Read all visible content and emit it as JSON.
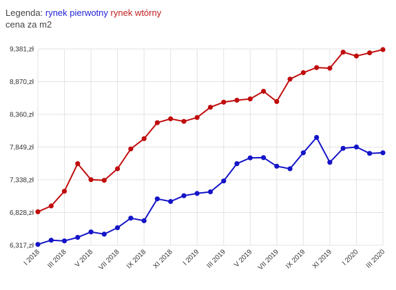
{
  "legend": {
    "prefix": "Legenda:",
    "subtitle": "cena za m2"
  },
  "chart_data": {
    "type": "line",
    "ylabel": "cena za m2",
    "ylim": [
      6317,
      9381
    ],
    "yticks": [
      6317,
      6828,
      7338,
      7849,
      8360,
      8870,
      9381
    ],
    "ytick_labels": [
      "6,317,zł",
      "6,828,zł",
      "7,338,zł",
      "7,849,zł",
      "8,360,zł",
      "8,870,zł",
      "9,381,zł"
    ],
    "x_tick_labels": [
      "I 2018",
      "III 2018",
      "V 2018",
      "VII 2018",
      "IX 2018",
      "XI 2018",
      "I 2019",
      "III 2019",
      "V 2019",
      "VII 2019",
      "IX 2019",
      "XI 2019",
      "I 2020",
      "III 2020"
    ],
    "x_tick_every": 2,
    "grid": true,
    "series": [
      {
        "name": "rynek pierwotny",
        "color": "#1414c8",
        "values": [
          6330,
          6395,
          6385,
          6440,
          6525,
          6490,
          6590,
          6740,
          6700,
          7040,
          7000,
          7090,
          7125,
          7150,
          7320,
          7590,
          7680,
          7685,
          7550,
          7510,
          7760,
          8000,
          7610,
          7830,
          7850,
          7750,
          7760
        ]
      },
      {
        "name": "rynek wtórny",
        "color": "#c00d0d",
        "values": [
          6840,
          6930,
          7160,
          7590,
          7340,
          7330,
          7510,
          7820,
          7980,
          8230,
          8290,
          8250,
          8310,
          8470,
          8550,
          8580,
          8600,
          8720,
          8560,
          8910,
          9010,
          9090,
          9080,
          9330,
          9270,
          9320,
          9370
        ]
      }
    ]
  }
}
